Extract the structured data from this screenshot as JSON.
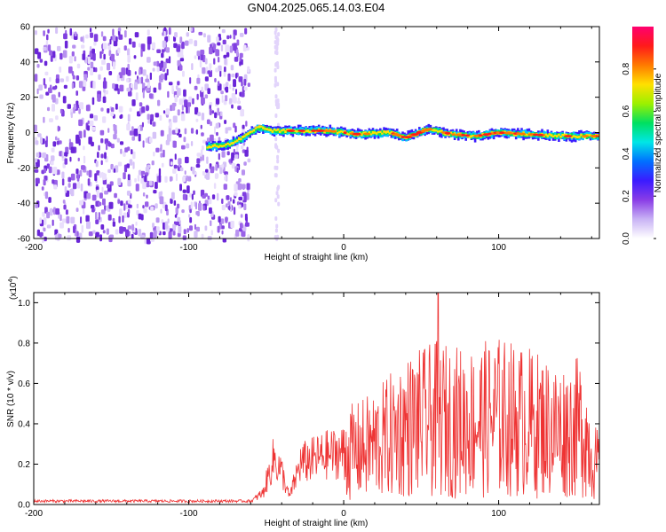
{
  "title": "GN04.2025.065.14.03.E04",
  "chart_data": [
    {
      "type": "heatmap",
      "name": "spectrogram",
      "title": "GN04.2025.065.14.03.E04",
      "xlabel": "Height of straight line (km)",
      "ylabel": "Frequency (Hz)",
      "xlim": [
        -200,
        165
      ],
      "ylim": [
        -60,
        60
      ],
      "xticks": [
        -200,
        -100,
        0,
        100
      ],
      "yticks": [
        -60,
        -40,
        -20,
        0,
        20,
        40,
        60
      ],
      "xtick_labels": [
        "-200",
        "-100",
        "0",
        "100"
      ],
      "ytick_labels": [
        "-60",
        "-40",
        "-20",
        "0",
        "20",
        "40",
        "60"
      ],
      "noise_region_x": [
        -200,
        -62
      ],
      "track_start_x": -88,
      "ridge": [
        {
          "x": -88,
          "f": -8
        },
        {
          "x": -75,
          "f": -7
        },
        {
          "x": -65,
          "f": -3
        },
        {
          "x": -55,
          "f": 3
        },
        {
          "x": -45,
          "f": 1
        },
        {
          "x": -30,
          "f": 1
        },
        {
          "x": -10,
          "f": 1
        },
        {
          "x": 10,
          "f": -1
        },
        {
          "x": 30,
          "f": 0
        },
        {
          "x": 40,
          "f": -3
        },
        {
          "x": 55,
          "f": 2
        },
        {
          "x": 70,
          "f": -1
        },
        {
          "x": 85,
          "f": -2
        },
        {
          "x": 100,
          "f": 0
        },
        {
          "x": 120,
          "f": -1
        },
        {
          "x": 140,
          "f": -2
        },
        {
          "x": 165,
          "f": -2
        }
      ],
      "colorbar": {
        "label": "Normalized spectral amplitude",
        "range": [
          0,
          1
        ],
        "ticks": [
          0.0,
          0.2,
          0.4,
          0.6,
          0.8
        ],
        "tick_labels": [
          "0.0",
          "0.2",
          "0.4",
          "0.6",
          "0.8"
        ],
        "colors": [
          "#ffffff",
          "#c9b3f5",
          "#8a3de6",
          "#3b1bff",
          "#0070ff",
          "#00e6e6",
          "#00e060",
          "#9cf000",
          "#ffe000",
          "#ff7a00",
          "#ff1a1a",
          "#ff0070"
        ]
      }
    },
    {
      "type": "line",
      "name": "snr",
      "xlabel": "Height of straight line (km)",
      "ylabel": "SNR (10 * v/v)",
      "y_multiplier_label": "(x10",
      "y_multiplier_exp": "4",
      "y_multiplier_close": ")",
      "xlim": [
        -200,
        165
      ],
      "ylim": [
        0,
        1.05
      ],
      "xticks": [
        -200,
        -100,
        0,
        100
      ],
      "yticks": [
        0.0,
        0.2,
        0.4,
        0.6,
        0.8,
        1.0
      ],
      "xtick_labels": [
        "-200",
        "-100",
        "0",
        "100"
      ],
      "ytick_labels": [
        "0.0",
        "0.2",
        "0.4",
        "0.6",
        "0.8",
        "1.0"
      ],
      "line_color": "#ee3333",
      "envelope": [
        {
          "x": -200,
          "y": 0.02
        },
        {
          "x": -60,
          "y": 0.02
        },
        {
          "x": -52,
          "y": 0.08
        },
        {
          "x": -45,
          "y": 0.32
        },
        {
          "x": -40,
          "y": 0.22
        },
        {
          "x": -35,
          "y": 0.05
        },
        {
          "x": -28,
          "y": 0.28
        },
        {
          "x": -10,
          "y": 0.34
        },
        {
          "x": 10,
          "y": 0.38
        },
        {
          "x": 25,
          "y": 0.45
        },
        {
          "x": 40,
          "y": 0.55
        },
        {
          "x": 60,
          "y": 0.6
        },
        {
          "x": 80,
          "y": 0.58
        },
        {
          "x": 100,
          "y": 0.62
        },
        {
          "x": 120,
          "y": 0.58
        },
        {
          "x": 140,
          "y": 0.52
        },
        {
          "x": 155,
          "y": 0.55
        },
        {
          "x": 160,
          "y": 0.35
        },
        {
          "x": 165,
          "y": 0.25
        }
      ],
      "peak": {
        "x": 61,
        "y": 1.05
      }
    }
  ]
}
